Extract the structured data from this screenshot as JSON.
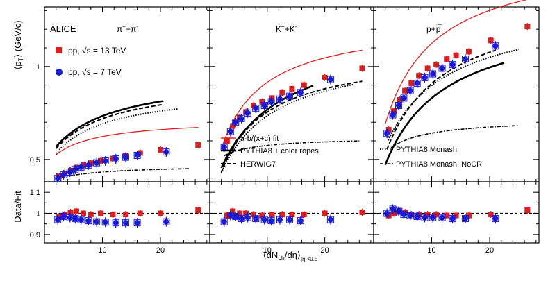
{
  "chart_data": {
    "type": "scatter",
    "experiment": "ALICE",
    "xlabel": "⟨dN_ch/dη⟩_|η|<0.5",
    "xlabel_main": "⟨dN",
    "xlabel_sub": "ch",
    "xlabel_tail": "/dη⟩",
    "xlabel_range": "|η|<0.5",
    "ylabel_top": "⟨p_T⟩ (GeV/c)",
    "ylabel_top_parts": [
      "⟨p",
      "T",
      "⟩ (GeV/c)"
    ],
    "ylabel_bottom": "Data/Fit",
    "xlim": [
      0,
      28.5
    ],
    "ylim_top": [
      0.38,
      1.32
    ],
    "ylim_bottom": [
      0.86,
      1.15
    ],
    "x_ticks": [
      10,
      20
    ],
    "x_tick_labels": [
      "10",
      "20"
    ],
    "y_ticks_top": [
      0.5,
      1
    ],
    "y_tick_labels_top": [
      "0.5",
      "1"
    ],
    "y_ticks_bottom": [
      0.9,
      1.0,
      1.1
    ],
    "y_tick_labels_bottom": [
      "0.9",
      "1",
      "1.1"
    ],
    "colors": {
      "pp13": "#d42020",
      "pp7": "#1a1ad0",
      "fit": "#e02020",
      "model": "#000000"
    },
    "legend": [
      {
        "key": "pp13",
        "label": "pp, √s = 13 TeV"
      },
      {
        "key": "pp7",
        "label": "pp, √s = 7 TeV"
      },
      {
        "key": "fit",
        "label": "a-b/(x+c) fit"
      },
      {
        "key": "ropes",
        "label": "PYTHIA8 + color ropes"
      },
      {
        "key": "herwig",
        "label": "HERWIG7"
      },
      {
        "key": "monash",
        "label": "PYTHIA8 Monash"
      },
      {
        "key": "nocr",
        "label": "PYTHIA8 Monash, NoCR"
      }
    ],
    "panels": [
      {
        "species": "π⁺+π⁻",
        "species_parts": [
          "π",
          "+",
          "+π",
          "-"
        ],
        "series": [
          {
            "name": "pp, √s = 13 TeV",
            "x": [
              2.5,
              3.5,
              4.5,
              5.5,
              6.7,
              8.0,
              9.7,
              11.8,
              14.0,
              16.5,
              20.0,
              26.5
            ],
            "y": [
              0.41,
              0.425,
              0.44,
              0.455,
              0.47,
              0.48,
              0.493,
              0.505,
              0.52,
              0.535,
              0.552,
              0.578
            ]
          },
          {
            "name": "pp, √s = 7 TeV",
            "x": [
              2.3,
              3.3,
              4.4,
              5.3,
              6.3,
              7.6,
              9.0,
              10.5,
              12.3,
              14.0,
              16.0,
              21.0
            ],
            "y": [
              0.398,
              0.418,
              0.432,
              0.446,
              0.459,
              0.47,
              0.482,
              0.492,
              0.503,
              0.512,
              0.522,
              0.54
            ]
          }
        ],
        "ratio": [
          {
            "name": "pp, √s = 13 TeV",
            "x": [
              2.5,
              3.5,
              4.5,
              5.5,
              6.7,
              8.0,
              9.7,
              11.8,
              14.0,
              16.5,
              20.0,
              26.5
            ],
            "y": [
              0.985,
              0.995,
              1.005,
              1.01,
              1.0,
              0.995,
              1.0,
              0.995,
              0.995,
              1.0,
              1.0,
              1.015
            ]
          },
          {
            "name": "pp, √s = 7 TeV",
            "x": [
              2.3,
              3.3,
              4.4,
              5.3,
              6.3,
              7.6,
              9.0,
              10.5,
              12.3,
              14.0,
              16.0,
              21.0
            ],
            "y": [
              0.97,
              0.985,
              0.98,
              0.975,
              0.97,
              0.965,
              0.96,
              0.958,
              0.955,
              0.955,
              0.955,
              0.96
            ]
          }
        ],
        "fit": {
          "a": 0.72,
          "b": 1.55,
          "c": 6.0
        },
        "models": {
          "ropes": {
            "a": 0.96,
            "b": 4.3,
            "c": 9.0,
            "x": [
              2,
              20.5
            ]
          },
          "herwig": {
            "a": 0.93,
            "b": 3.9,
            "c": 8.5,
            "x": [
              2,
              20.5
            ]
          },
          "monash": {
            "a": 0.88,
            "b": 3.3,
            "c": 7.5,
            "x": [
              2,
              23
            ]
          },
          "nocr": {
            "a": 0.47,
            "b": 0.6,
            "c": 6.0,
            "x": [
              3,
              25
            ]
          }
        }
      },
      {
        "species": "K⁺+K⁻",
        "species_parts": [
          "K",
          "+",
          "+K",
          "-"
        ],
        "series": [
          {
            "name": "pp, √s = 13 TeV",
            "x": [
              3.0,
              4.0,
              5.2,
              6.3,
              7.6,
              9.1,
              10.8,
              12.6,
              14.3,
              16.4,
              20.0,
              26.5
            ],
            "y": [
              0.6,
              0.68,
              0.725,
              0.755,
              0.79,
              0.81,
              0.83,
              0.86,
              0.88,
              0.9,
              0.94,
              0.99
            ]
          },
          {
            "name": "pp, √s = 7 TeV",
            "x": [
              2.5,
              3.6,
              4.5,
              5.5,
              6.6,
              8.0,
              9.5,
              10.7,
              12.2,
              13.9,
              15.8,
              21.0
            ],
            "y": [
              0.565,
              0.65,
              0.7,
              0.72,
              0.75,
              0.775,
              0.79,
              0.81,
              0.825,
              0.84,
              0.86,
              0.93
            ]
          }
        ],
        "ratio": [
          {
            "name": "pp, √s = 13 TeV",
            "x": [
              3.0,
              4.0,
              5.2,
              6.3,
              7.6,
              9.1,
              10.8,
              12.6,
              14.3,
              16.4,
              20.0,
              26.5
            ],
            "y": [
              0.99,
              1.01,
              1.0,
              1.0,
              0.995,
              0.99,
              0.995,
              0.995,
              0.995,
              0.995,
              1.0,
              1.005
            ]
          },
          {
            "name": "pp, √s = 7 TeV",
            "x": [
              2.5,
              3.6,
              4.5,
              5.5,
              6.6,
              8.0,
              9.5,
              10.7,
              12.2,
              13.9,
              15.8,
              21.0
            ],
            "y": [
              0.96,
              0.99,
              0.985,
              0.975,
              0.98,
              0.975,
              0.97,
              0.965,
              0.97,
              0.97,
              0.965,
              0.97
            ]
          }
        ],
        "fit": {
          "a": 1.25,
          "b": 5.2,
          "c": 5.5
        },
        "models": {
          "ropes": {
            "a": 1.2,
            "b": 8.2,
            "c": 9.0,
            "x": [
              2,
              18
            ]
          },
          "herwig": {
            "a": 1.08,
            "b": 5.2,
            "c": 6.0,
            "x": [
              2,
              26.5
            ]
          },
          "monash": {
            "a": 1.1,
            "b": 6.4,
            "c": 7.5,
            "x": [
              2,
              25
            ]
          },
          "nocr": {
            "a": 0.62,
            "b": 0.6,
            "c": 3.5,
            "x": [
              2.5,
              26
            ]
          }
        }
      },
      {
        "species": "p+p̄",
        "species_parts": [
          "p+",
          "p"
        ],
        "series": [
          {
            "name": "pp, √s = 13 TeV",
            "x": [
              2.6,
              3.5,
              4.5,
              5.4,
              6.5,
              7.8,
              9.3,
              10.8,
              12.6,
              14.2,
              16.4,
              20.2,
              26.5
            ],
            "y": [
              0.66,
              0.76,
              0.82,
              0.87,
              0.91,
              0.95,
              0.99,
              1.01,
              1.04,
              1.06,
              1.08,
              1.14,
              1.215
            ]
          },
          {
            "name": "pp, √s = 7 TeV",
            "x": [
              2.3,
              3.3,
              4.3,
              5.2,
              6.3,
              7.5,
              8.8,
              10.2,
              11.8,
              13.6,
              15.8,
              21.0
            ],
            "y": [
              0.64,
              0.74,
              0.79,
              0.83,
              0.87,
              0.91,
              0.94,
              0.96,
              0.99,
              1.01,
              1.04,
              1.11
            ]
          }
        ],
        "ratio": [
          {
            "name": "pp, √s = 13 TeV",
            "x": [
              2.6,
              3.5,
              4.5,
              5.4,
              6.5,
              7.8,
              9.3,
              10.8,
              12.6,
              14.2,
              16.4,
              20.2,
              26.5
            ],
            "y": [
              0.99,
              1.0,
              1.01,
              1.005,
              0.995,
              0.995,
              0.995,
              0.995,
              0.99,
              0.99,
              0.99,
              0.995,
              1.015
            ]
          },
          {
            "name": "pp, √s = 7 TeV",
            "x": [
              2.3,
              3.3,
              4.3,
              5.2,
              6.3,
              7.5,
              8.8,
              10.2,
              11.8,
              13.6,
              15.8,
              21.0
            ],
            "y": [
              1.0,
              1.02,
              1.01,
              0.995,
              0.99,
              0.985,
              0.98,
              0.98,
              0.98,
              0.975,
              0.975,
              0.975
            ]
          }
        ],
        "fit": {
          "a": 1.6,
          "b": 8.0,
          "c": 6.8
        },
        "models": {
          "ropes": {
            "a": 1.3,
            "b": 8.7,
            "c": 8.5,
            "x": [
              2,
              22.5
            ]
          },
          "herwig": {
            "a": 1.38,
            "b": 8.5,
            "c": 8.0,
            "x": [
              2.3,
              21
            ]
          },
          "monash": {
            "a": 1.33,
            "b": 8.0,
            "c": 8.5,
            "x": [
              2.5,
              25
            ]
          },
          "nocr": {
            "a": 0.72,
            "b": 1.1,
            "c": 4.0,
            "x": [
              3,
              25
            ]
          }
        }
      }
    ]
  }
}
